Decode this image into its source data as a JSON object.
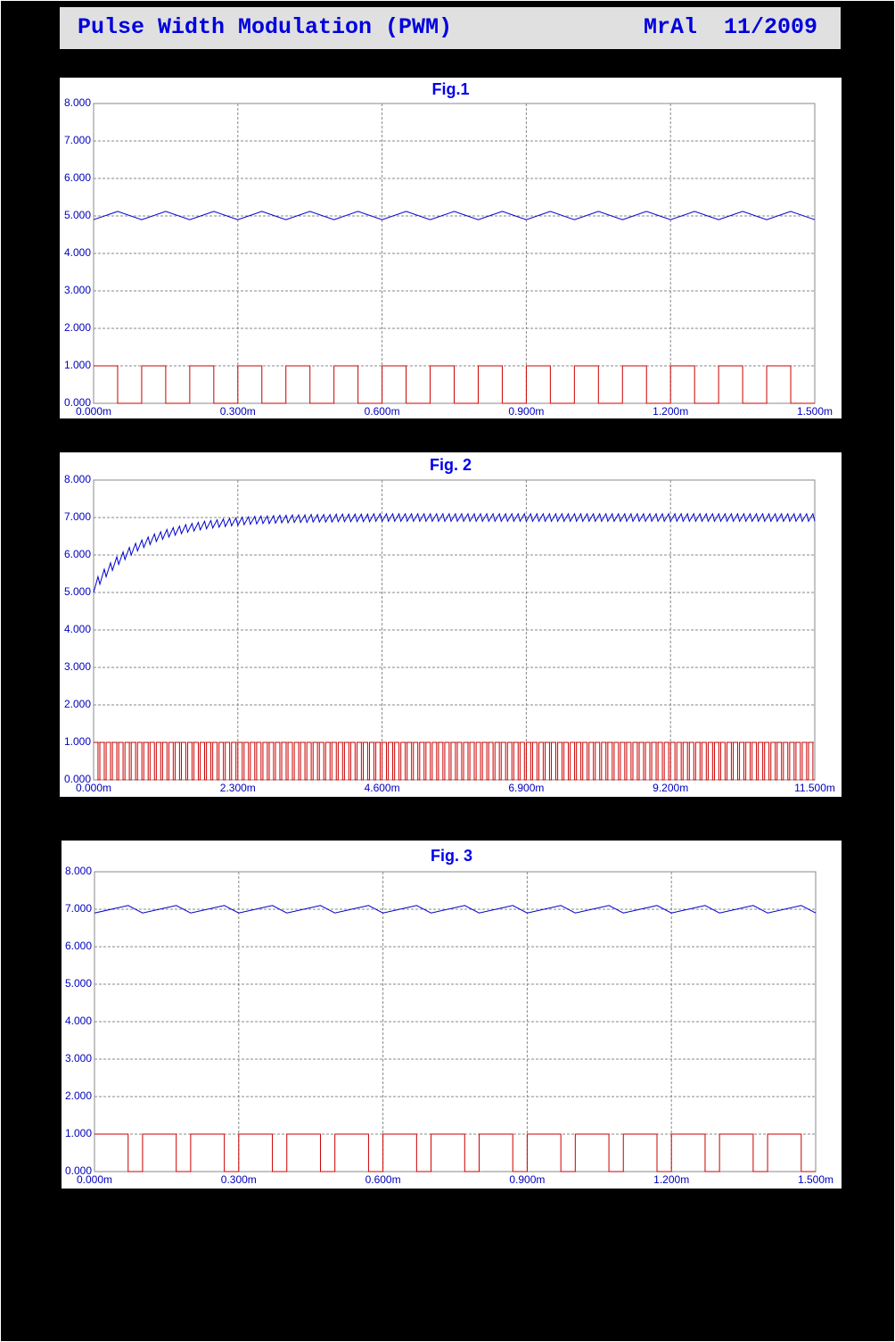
{
  "header": {
    "title": "Pulse Width Modulation (PWM)",
    "author_date": "MrAl  11/2009"
  },
  "chart_data": [
    {
      "type": "line",
      "title": "Fig.1",
      "x": [
        0,
        0.05,
        0.1,
        0.15,
        0.2,
        0.25,
        0.3,
        0.35,
        0.4,
        0.45,
        0.5,
        0.55,
        0.6,
        0.65,
        0.7,
        0.75,
        0.8,
        0.85,
        0.9,
        0.95,
        1,
        1.05,
        1.1,
        1.15,
        1.2,
        1.25,
        1.3,
        1.35,
        1.4,
        1.45,
        1.5
      ],
      "series": [
        {
          "color": "#0000cc",
          "values": [
            4.9,
            5.12,
            4.9,
            5.12,
            4.9,
            5.12,
            4.9,
            5.12,
            4.9,
            5.12,
            4.9,
            5.12,
            4.9,
            5.12,
            4.9,
            5.12,
            4.9,
            5.12,
            4.9,
            5.12,
            4.9,
            5.12,
            4.9,
            5.12,
            4.9,
            5.12,
            4.9,
            5.12,
            4.9,
            5.12,
            4.9
          ]
        },
        {
          "color": "#cc0000",
          "step": true,
          "values": [
            1,
            0,
            1,
            0,
            1,
            0,
            1,
            0,
            1,
            0,
            1,
            0,
            1,
            0,
            1,
            0,
            1,
            0,
            1,
            0,
            1,
            0,
            1,
            0,
            1,
            0,
            1,
            0,
            1,
            0,
            0
          ]
        }
      ],
      "xlim": [
        0,
        1.5
      ],
      "xticks": [
        {
          "value": 0,
          "label": "0.000m"
        },
        {
          "value": 0.3,
          "label": "0.300m"
        },
        {
          "value": 0.6,
          "label": "0.600m"
        },
        {
          "value": 0.9,
          "label": "0.900m"
        },
        {
          "value": 1.2,
          "label": "1.200m"
        },
        {
          "value": 1.5,
          "label": "1.500m"
        }
      ],
      "ylim": [
        0,
        8
      ],
      "yticks": [
        {
          "value": 0,
          "label": "0.000"
        },
        {
          "value": 1,
          "label": "1.000"
        },
        {
          "value": 2,
          "label": "2.000"
        },
        {
          "value": 3,
          "label": "3.000"
        },
        {
          "value": 4,
          "label": "4.000"
        },
        {
          "value": 5,
          "label": "5.000"
        },
        {
          "value": 6,
          "label": "6.000"
        },
        {
          "value": 7,
          "label": "7.000"
        },
        {
          "value": 8,
          "label": "8.000"
        }
      ],
      "grid": true
    },
    {
      "type": "line",
      "title": "Fig. 2",
      "x": [
        0,
        0.07,
        0.1,
        0.17,
        0.2,
        0.27,
        0.3,
        0.37,
        0.4,
        0.47,
        0.5,
        0.57,
        0.6,
        0.67,
        0.7,
        0.77,
        0.8,
        0.87,
        0.9,
        0.97,
        1,
        1.07,
        1.1,
        1.17,
        1.2,
        1.27,
        1.3,
        1.37,
        1.4,
        1.47,
        1.5,
        1.57,
        1.6,
        1.67,
        1.7,
        1.77,
        1.8,
        1.87,
        1.9,
        1.97,
        2,
        2.07,
        2.1,
        2.17,
        2.2,
        2.27,
        2.3,
        2.37,
        2.4,
        2.47,
        2.5,
        2.57,
        2.6,
        2.67,
        2.7,
        2.77,
        2.8,
        2.87,
        2.9,
        2.97,
        3,
        3.07,
        3.1,
        3.17,
        3.2,
        3.27,
        3.3,
        3.37,
        3.4,
        3.47,
        3.5,
        3.57,
        3.6,
        3.67,
        3.7,
        3.77,
        3.8,
        3.87,
        3.9,
        3.97,
        4,
        4.07,
        4.1,
        4.17,
        4.2,
        4.27,
        4.3,
        4.37,
        4.4,
        4.47,
        4.5,
        4.57,
        4.6,
        4.67,
        4.7,
        4.77,
        4.8,
        4.87,
        4.9,
        4.97,
        5,
        5.07,
        5.1,
        5.17,
        5.2,
        5.27,
        5.3,
        5.37,
        5.4,
        5.47,
        5.5,
        5.57,
        5.6,
        5.67,
        5.7,
        5.77,
        5.8,
        5.87,
        5.9,
        5.97,
        6,
        6.07,
        6.1,
        6.17,
        6.2,
        6.27,
        6.3,
        6.37,
        6.4,
        6.47,
        6.5,
        6.57,
        6.6,
        6.67,
        6.7,
        6.77,
        6.8,
        6.87,
        6.9,
        6.97,
        7,
        7.07,
        7.1,
        7.17,
        7.2,
        7.27,
        7.3,
        7.37,
        7.4,
        7.47,
        7.5,
        7.57,
        7.6,
        7.67,
        7.7,
        7.77,
        7.8,
        7.87,
        7.9,
        7.97,
        8,
        8.07,
        8.1,
        8.17,
        8.2,
        8.27,
        8.3,
        8.37,
        8.4,
        8.47,
        8.5,
        8.57,
        8.6,
        8.67,
        8.7,
        8.77,
        8.8,
        8.87,
        8.9,
        8.97,
        9,
        9.07,
        9.1,
        9.17,
        9.2,
        9.27,
        9.3,
        9.37,
        9.4,
        9.47,
        9.5,
        9.57,
        9.6,
        9.67,
        9.7,
        9.77,
        9.8,
        9.87,
        9.9,
        9.97,
        10,
        10.07,
        10.1,
        10.17,
        10.2,
        10.27,
        10.3,
        10.37,
        10.4,
        10.47,
        10.5,
        10.57,
        10.6,
        10.67,
        10.7,
        10.77,
        10.8,
        10.87,
        10.9,
        10.97,
        11,
        11.07,
        11.1,
        11.17,
        11.2,
        11.27,
        11.3,
        11.37,
        11.4,
        11.47,
        11.5
      ],
      "series": [
        {
          "color": "#0000cc",
          "values": [
            5,
            5.42,
            5.22,
            5.62,
            5.42,
            5.79,
            5.59,
            5.95,
            5.75,
            6.08,
            5.88,
            6.2,
            6,
            6.31,
            6.11,
            6.4,
            6.2,
            6.48,
            6.28,
            6.56,
            6.36,
            6.62,
            6.42,
            6.68,
            6.48,
            6.73,
            6.53,
            6.77,
            6.57,
            6.81,
            6.61,
            6.84,
            6.64,
            6.87,
            6.67,
            6.9,
            6.7,
            6.92,
            6.72,
            6.94,
            6.74,
            6.96,
            6.76,
            6.98,
            6.78,
            6.99,
            6.79,
            7.01,
            6.81,
            7.02,
            6.82,
            7.03,
            6.83,
            7.04,
            6.84,
            7.04,
            6.84,
            7.05,
            6.85,
            7.06,
            6.86,
            7.06,
            6.86,
            7.07,
            6.87,
            7.07,
            6.87,
            7.07,
            6.87,
            7.08,
            6.88,
            7.08,
            6.88,
            7.08,
            6.88,
            7.08,
            6.88,
            7.09,
            6.89,
            7.09,
            6.89,
            7.09,
            6.89,
            7.09,
            6.89,
            7.09,
            6.89,
            7.09,
            6.89,
            7.1,
            6.9,
            7.1,
            6.9,
            7.1,
            6.9,
            7.1,
            6.9,
            7.1,
            6.9,
            7.1,
            6.9,
            7.1,
            6.9,
            7.1,
            6.9,
            7.1,
            6.9,
            7.1,
            6.9,
            7.1,
            6.9,
            7.1,
            6.9,
            7.1,
            6.9,
            7.1,
            6.9,
            7.1,
            6.9,
            7.1,
            6.9,
            7.1,
            6.9,
            7.1,
            6.9,
            7.1,
            6.9,
            7.1,
            6.9,
            7.1,
            6.9,
            7.1,
            6.9,
            7.1,
            6.9,
            7.1,
            6.9,
            7.1,
            6.9,
            7.1,
            6.9,
            7.1,
            6.9,
            7.1,
            6.9,
            7.1,
            6.9,
            7.1,
            6.9,
            7.1,
            6.9,
            7.1,
            6.9,
            7.1,
            6.9,
            7.1,
            6.9,
            7.1,
            6.9,
            7.1,
            6.9,
            7.1,
            6.9,
            7.1,
            6.9,
            7.1,
            6.9,
            7.1,
            6.9,
            7.1,
            6.9,
            7.1,
            6.9,
            7.1,
            6.9,
            7.1,
            6.9,
            7.1,
            6.9,
            7.1,
            6.9,
            7.1,
            6.9,
            7.1,
            6.9,
            7.1,
            6.9,
            7.1,
            6.9,
            7.1,
            6.9,
            7.1,
            6.9,
            7.1,
            6.9,
            7.1,
            6.9,
            7.1,
            6.9,
            7.1,
            6.9,
            7.1,
            6.9,
            7.1,
            6.9,
            7.1,
            6.9,
            7.1,
            6.9,
            7.1,
            6.9,
            7.1,
            6.9,
            7.1,
            6.9,
            7.1,
            6.9,
            7.1,
            6.9,
            7.1,
            6.9,
            7.1,
            6.9,
            7.1,
            6.9,
            7.1,
            6.9,
            7.1,
            6.9,
            7.1,
            6.9
          ]
        },
        {
          "color": "#cc0000",
          "step": true,
          "values": [
            1,
            0,
            1,
            0,
            1,
            0,
            1,
            0,
            1,
            0,
            1,
            0,
            1,
            0,
            1,
            0,
            1,
            0,
            1,
            0,
            1,
            0,
            1,
            0,
            1,
            0,
            1,
            0,
            1,
            0,
            1,
            0,
            1,
            0,
            1,
            0,
            1,
            0,
            1,
            0,
            1,
            0,
            1,
            0,
            1,
            0,
            1,
            0,
            1,
            0,
            1,
            0,
            1,
            0,
            1,
            0,
            1,
            0,
            1,
            0,
            1,
            0,
            1,
            0,
            1,
            0,
            1,
            0,
            1,
            0,
            1,
            0,
            1,
            0,
            1,
            0,
            1,
            0,
            1,
            0,
            1,
            0,
            1,
            0,
            1,
            0,
            1,
            0,
            1,
            0,
            1,
            0,
            1,
            0,
            1,
            0,
            1,
            0,
            1,
            0,
            1,
            0,
            1,
            0,
            1,
            0,
            1,
            0,
            1,
            0,
            1,
            0,
            1,
            0,
            1,
            0,
            1,
            0,
            1,
            0,
            1,
            0,
            1,
            0,
            1,
            0,
            1,
            0,
            1,
            0,
            1,
            0,
            1,
            0,
            1,
            0,
            1,
            0,
            1,
            0,
            1,
            0,
            1,
            0,
            1,
            0,
            1,
            0,
            1,
            0,
            1,
            0,
            1,
            0,
            1,
            0,
            1,
            0,
            1,
            0,
            1,
            0,
            1,
            0,
            1,
            0,
            1,
            0,
            1,
            0,
            1,
            0,
            1,
            0,
            1,
            0,
            1,
            0,
            1,
            0,
            1,
            0,
            1,
            0,
            1,
            0,
            1,
            0,
            1,
            0,
            1,
            0,
            1,
            0,
            1,
            0,
            1,
            0,
            1,
            0,
            1,
            0,
            1,
            0,
            1,
            0,
            1,
            0,
            1,
            0,
            1,
            0,
            1,
            0,
            1,
            0,
            1,
            0,
            1,
            0,
            1,
            0,
            1,
            0,
            1,
            0,
            1,
            0,
            1,
            0,
            0
          ]
        }
      ],
      "xlim": [
        0,
        11.5
      ],
      "xticks": [
        {
          "value": 0,
          "label": "0.000m"
        },
        {
          "value": 2.3,
          "label": "2.300m"
        },
        {
          "value": 4.6,
          "label": "4.600m"
        },
        {
          "value": 6.9,
          "label": "6.900m"
        },
        {
          "value": 9.2,
          "label": "9.200m"
        },
        {
          "value": 11.5,
          "label": "11.500m"
        }
      ],
      "ylim": [
        0,
        8
      ],
      "yticks": [
        {
          "value": 0,
          "label": "0.000"
        },
        {
          "value": 1,
          "label": "1.000"
        },
        {
          "value": 2,
          "label": "2.000"
        },
        {
          "value": 3,
          "label": "3.000"
        },
        {
          "value": 4,
          "label": "4.000"
        },
        {
          "value": 5,
          "label": "5.000"
        },
        {
          "value": 6,
          "label": "6.000"
        },
        {
          "value": 7,
          "label": "7.000"
        },
        {
          "value": 8,
          "label": "8.000"
        }
      ],
      "grid": true
    },
    {
      "type": "line",
      "title": "Fig. 3",
      "x": [
        0,
        0.07,
        0.1,
        0.17,
        0.2,
        0.27,
        0.3,
        0.37,
        0.4,
        0.47,
        0.5,
        0.57,
        0.6,
        0.67,
        0.7,
        0.77,
        0.8,
        0.87,
        0.9,
        0.97,
        1,
        1.07,
        1.1,
        1.17,
        1.2,
        1.27,
        1.3,
        1.37,
        1.4,
        1.47,
        1.5
      ],
      "series": [
        {
          "color": "#0000cc",
          "values": [
            6.9,
            7.1,
            6.9,
            7.1,
            6.9,
            7.1,
            6.9,
            7.1,
            6.9,
            7.1,
            6.9,
            7.1,
            6.9,
            7.1,
            6.9,
            7.1,
            6.9,
            7.1,
            6.9,
            7.1,
            6.9,
            7.1,
            6.9,
            7.1,
            6.9,
            7.1,
            6.9,
            7.1,
            6.9,
            7.1,
            6.9
          ]
        },
        {
          "color": "#cc0000",
          "step": true,
          "values": [
            1,
            0,
            1,
            0,
            1,
            0,
            1,
            0,
            1,
            0,
            1,
            0,
            1,
            0,
            1,
            0,
            1,
            0,
            1,
            0,
            1,
            0,
            1,
            0,
            1,
            0,
            1,
            0,
            1,
            0,
            0
          ]
        }
      ],
      "xlim": [
        0,
        1.5
      ],
      "xticks": [
        {
          "value": 0,
          "label": "0.000m"
        },
        {
          "value": 0.3,
          "label": "0.300m"
        },
        {
          "value": 0.6,
          "label": "0.600m"
        },
        {
          "value": 0.9,
          "label": "0.900m"
        },
        {
          "value": 1.2,
          "label": "1.200m"
        },
        {
          "value": 1.5,
          "label": "1.500m"
        }
      ],
      "ylim": [
        0,
        8
      ],
      "yticks": [
        {
          "value": 0,
          "label": "0.000"
        },
        {
          "value": 1,
          "label": "1.000"
        },
        {
          "value": 2,
          "label": "2.000"
        },
        {
          "value": 3,
          "label": "3.000"
        },
        {
          "value": 4,
          "label": "4.000"
        },
        {
          "value": 5,
          "label": "5.000"
        },
        {
          "value": 6,
          "label": "6.000"
        },
        {
          "value": 7,
          "label": "7.000"
        },
        {
          "value": 8,
          "label": "8.000"
        }
      ],
      "grid": true
    }
  ]
}
